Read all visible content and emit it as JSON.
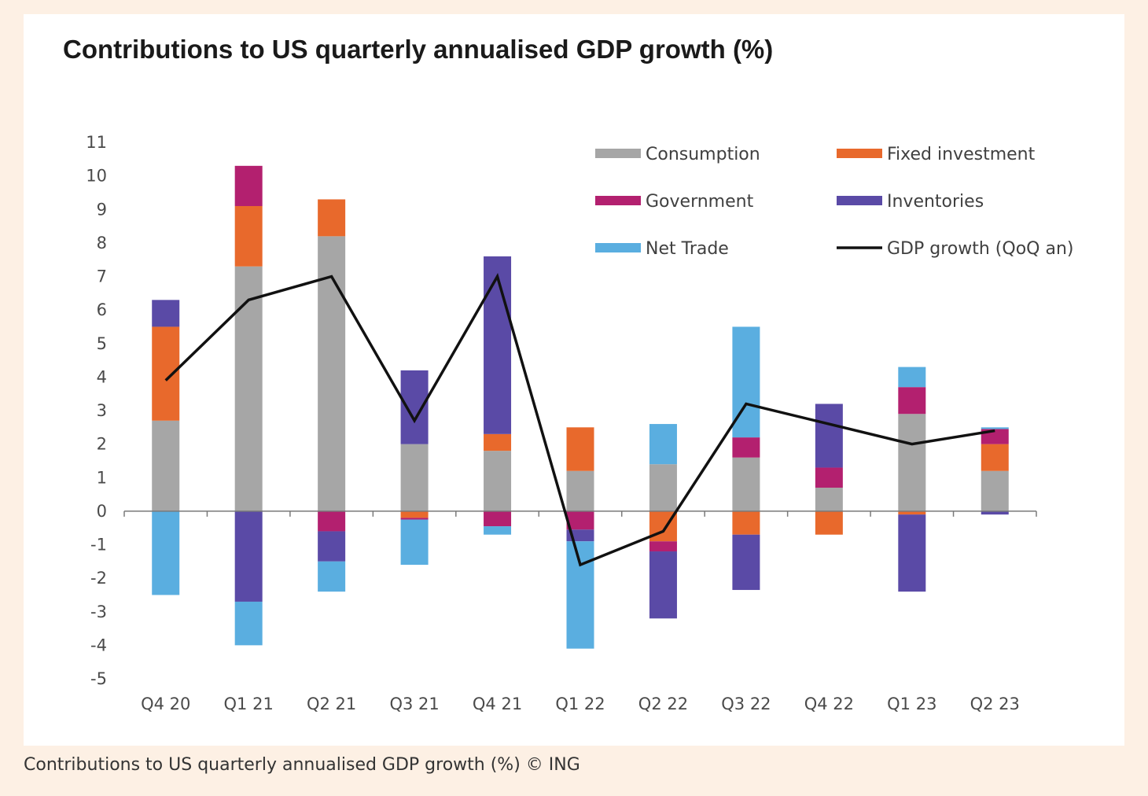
{
  "caption": "Contributions to US quarterly annualised GDP growth (%) © ING",
  "chart_data": {
    "type": "bar",
    "stacked": true,
    "title": "Contributions to US quarterly annualised GDP growth (%)",
    "xlabel": "",
    "ylabel": "",
    "ylim": [
      -5,
      11
    ],
    "yticks": [
      "11",
      "10",
      "9",
      "8",
      "7",
      "6",
      "5",
      "4",
      "3",
      "2",
      "1",
      "0",
      "-1",
      "-2",
      "-3",
      "-4",
      "-5"
    ],
    "grid": false,
    "legend": "top-right",
    "categories": [
      "Q4 20",
      "Q1 21",
      "Q2 21",
      "Q3 21",
      "Q4 21",
      "Q1 22",
      "Q2 22",
      "Q3 22",
      "Q4 22",
      "Q1 23",
      "Q2 23"
    ],
    "series": [
      {
        "name": "Consumption",
        "color": "#a6a6a6",
        "values": [
          2.7,
          7.3,
          8.2,
          2.0,
          1.8,
          1.2,
          1.4,
          1.6,
          0.7,
          2.9,
          1.2
        ]
      },
      {
        "name": "Fixed investment",
        "color": "#e8692c",
        "values": [
          2.8,
          1.8,
          1.1,
          -0.2,
          0.5,
          1.3,
          -0.9,
          -0.7,
          -0.7,
          -0.1,
          0.8
        ]
      },
      {
        "name": "Government",
        "color": "#b3206f",
        "values": [
          0.0,
          1.2,
          -0.6,
          -0.05,
          -0.45,
          -0.55,
          -0.3,
          0.6,
          0.6,
          0.8,
          0.45
        ]
      },
      {
        "name": "Inventories",
        "color": "#5a4aa6",
        "values": [
          0.8,
          -2.7,
          -0.9,
          2.2,
          5.3,
          -0.35,
          -2.0,
          -1.65,
          1.9,
          -2.3,
          -0.1
        ]
      },
      {
        "name": "Net Trade",
        "color": "#5aaee0",
        "values": [
          -2.5,
          -1.3,
          -0.9,
          -1.35,
          -0.25,
          -3.2,
          1.2,
          3.3,
          0.0,
          0.6,
          0.05
        ]
      }
    ],
    "line": {
      "name": "GDP growth (QoQ an)",
      "color": "#111111",
      "values": [
        3.9,
        6.3,
        7.0,
        2.7,
        7.0,
        -1.6,
        -0.6,
        3.2,
        2.6,
        2.0,
        2.4
      ]
    }
  }
}
